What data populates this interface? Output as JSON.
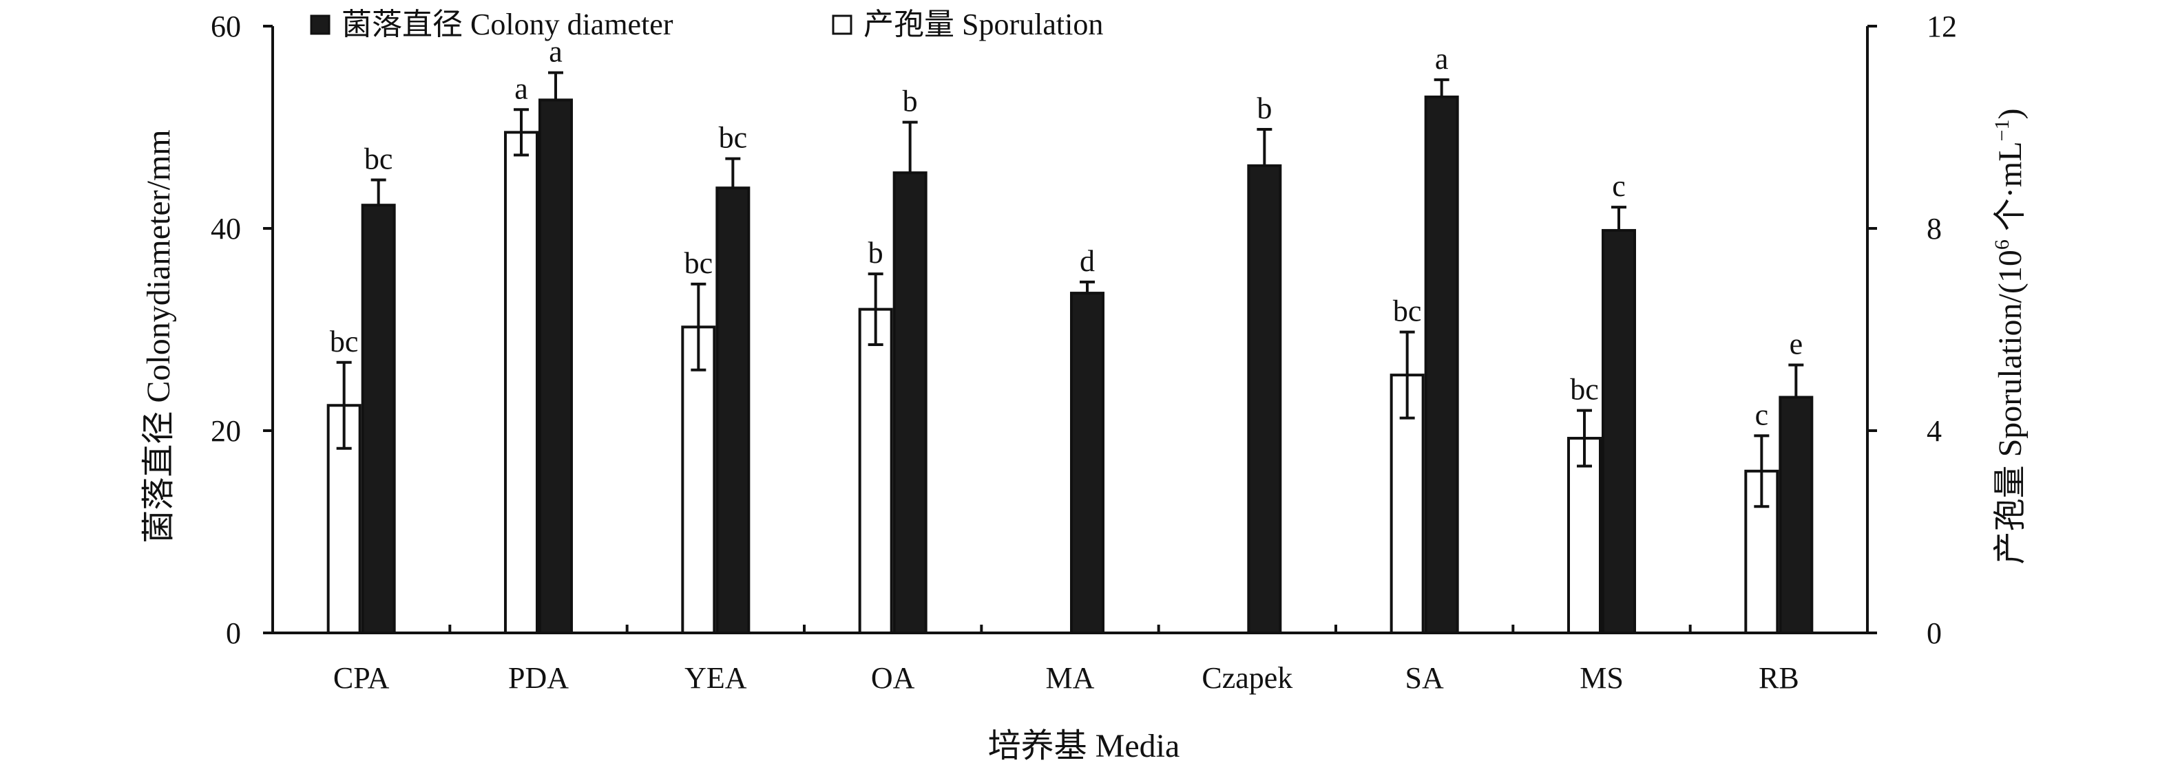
{
  "chart_data": {
    "type": "bar",
    "title": "",
    "xlabel": "培养基 Media",
    "ylabel_left": "菌落直径 Colonydiameter/mm",
    "ylabel_right_parts": {
      "prefix": "产孢量 Sporulation/(10",
      "sup1": "6",
      "mid": " 个·mL",
      "sup2": "−1",
      "suffix": ")"
    },
    "categories": [
      "CPA",
      "PDA",
      "YEA",
      "OA",
      "MA",
      "Czapek",
      "SA",
      "MS",
      "RB"
    ],
    "left_axis": {
      "ylim": [
        0,
        60
      ],
      "ticks": [
        "0",
        "20",
        "40",
        "60"
      ],
      "tick_values": [
        0,
        20,
        40,
        60
      ]
    },
    "right_axis": {
      "ylim": [
        0,
        12
      ],
      "ticks": [
        "0",
        "4",
        "8",
        "12"
      ],
      "tick_values": [
        0,
        4,
        8,
        12
      ]
    },
    "legend_placement": "top-left",
    "grid": false,
    "series": [
      {
        "name": "产孢量 Sporulation",
        "axis": "right",
        "fill": "#ffffff",
        "values": [
          4.5,
          9.9,
          6.05,
          6.4,
          0,
          0,
          5.1,
          3.85,
          3.2
        ],
        "errors": [
          0.85,
          0.45,
          0.85,
          0.7,
          0,
          0,
          0.85,
          0.55,
          0.7
        ],
        "labels": [
          "bc",
          "a",
          "bc",
          "b",
          "",
          "",
          "bc",
          "bc",
          "c"
        ]
      },
      {
        "name": "菌落直径 Colony diameter",
        "axis": "left",
        "fill": "#1a1a1a",
        "values": [
          42.3,
          52.7,
          44.0,
          45.5,
          33.6,
          46.2,
          53.0,
          39.8,
          23.3
        ],
        "errors": [
          2.5,
          2.7,
          2.9,
          5.0,
          1.1,
          3.6,
          1.7,
          2.3,
          3.2
        ],
        "labels": [
          "bc",
          "a",
          "bc",
          "b",
          "d",
          "b",
          "a",
          "c",
          "e"
        ]
      }
    ]
  }
}
